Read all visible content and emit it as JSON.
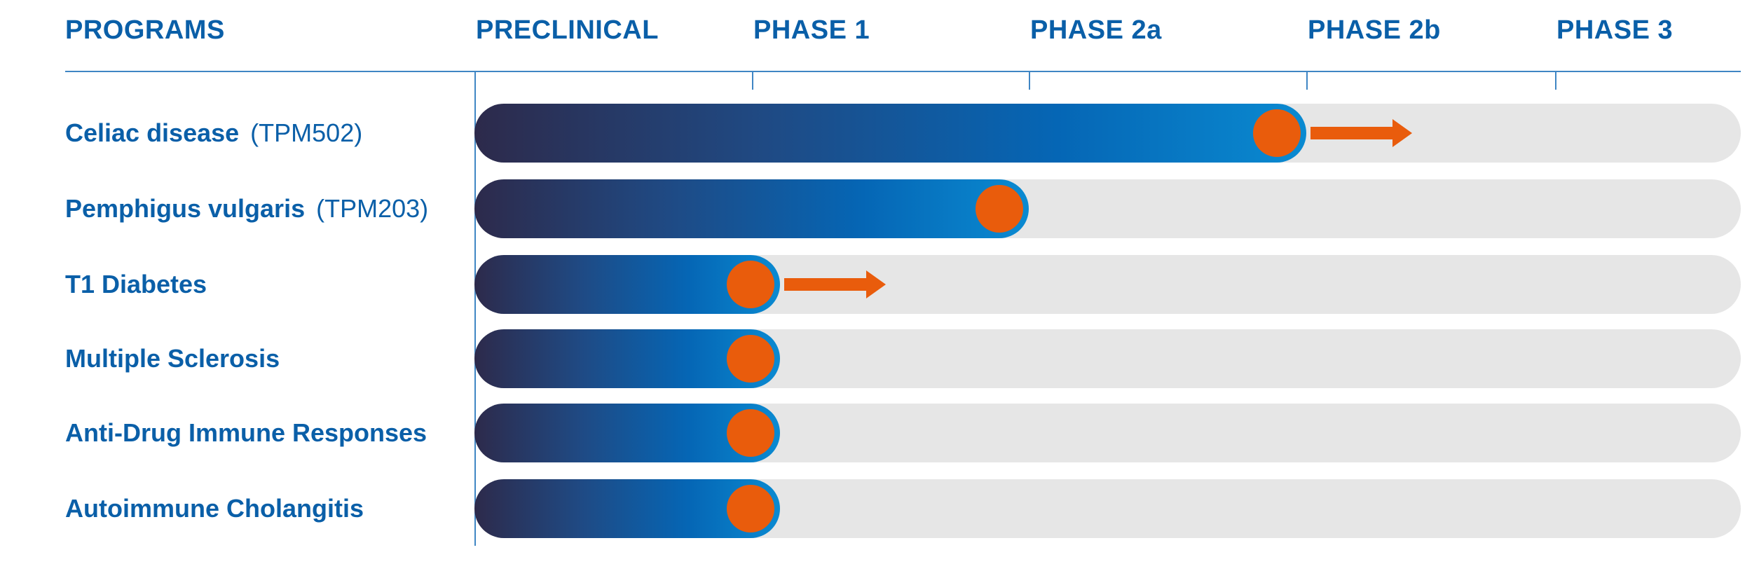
{
  "chart_data": {
    "type": "bar",
    "header": {
      "programs_label": "PROGRAMS",
      "stages": [
        "PRECLINICAL",
        "PHASE 1",
        "PHASE 2a",
        "PHASE 2b",
        "PHASE 3"
      ]
    },
    "stage_scale": {
      "min": 0,
      "max": 5
    },
    "programs": [
      {
        "name": "Celiac disease",
        "code": "(TPM502)",
        "progress": 3.0,
        "advancing": true
      },
      {
        "name": "Pemphigus vulgaris",
        "code": "(TPM203)",
        "progress": 2.0,
        "advancing": false
      },
      {
        "name": "T1 Diabetes",
        "code": "",
        "progress": 1.1,
        "advancing": true
      },
      {
        "name": "Multiple Sclerosis",
        "code": "",
        "progress": 1.1,
        "advancing": false
      },
      {
        "name": "Anti-Drug Immune Responses",
        "code": "",
        "progress": 1.1,
        "advancing": false
      },
      {
        "name": "Autoimmune Cholangitis",
        "code": "",
        "progress": 1.1,
        "advancing": false
      }
    ],
    "colors": {
      "label": "#0a5fa8",
      "axis": "#3f86c4",
      "track": "#e6e6e6",
      "fill_start": "#2d2a4b",
      "fill_end": "#0a8ad1",
      "marker": "#e95c0c",
      "arrow": "#e95c0c"
    }
  }
}
